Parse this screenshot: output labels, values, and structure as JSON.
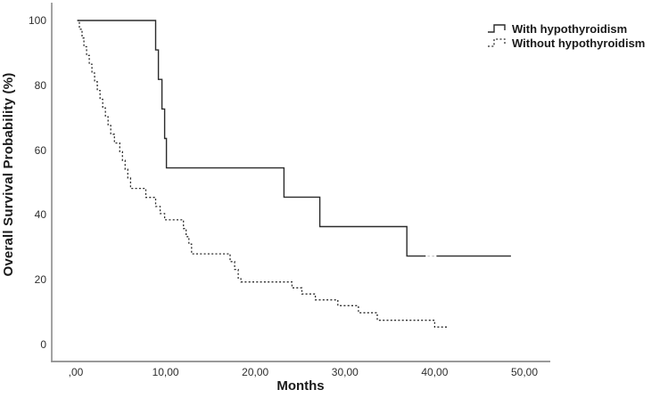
{
  "colors": {
    "curve": "#2b2b2b",
    "axis": "#8c8c8c",
    "text": "#1a1a1a",
    "tick_text": "#2e2e2e",
    "faint": "#c4c4c4",
    "background": "#ffffff"
  },
  "legend": {
    "items": [
      {
        "label": "With hypothyroidism",
        "style": "solid"
      },
      {
        "label": "Without hypothyroidism",
        "style": "dashed"
      }
    ]
  },
  "chart_data": {
    "type": "line",
    "subtype": "kaplan-meier-step",
    "title": "",
    "xlabel": "Months",
    "ylabel": "Overall Survival Probability (%)",
    "x_tick_labels": [
      ",00",
      "10,00",
      "20,00",
      "30,00",
      "40,00",
      "50,00"
    ],
    "x_tick_values": [
      0,
      10,
      20,
      30,
      40,
      50
    ],
    "y_tick_labels": [
      "0",
      "20",
      "40",
      "60",
      "80",
      "100"
    ],
    "y_tick_values": [
      0,
      20,
      40,
      60,
      80,
      100
    ],
    "xlim": [
      -2.7,
      52.9
    ],
    "ylim": [
      -5.2,
      105.2
    ],
    "grid": false,
    "legend_position": "top-right",
    "series": [
      {
        "name": "With hypothyroidism",
        "style": "solid",
        "steps": [
          [
            0.2,
            100
          ],
          [
            8.9,
            90.9
          ],
          [
            9.2,
            81.8
          ],
          [
            9.6,
            72.7
          ],
          [
            9.9,
            63.6
          ],
          [
            10.1,
            54.5
          ],
          [
            23.2,
            45.5
          ],
          [
            27.2,
            36.4
          ],
          [
            36.9,
            27.3
          ]
        ],
        "end_t": 39.0
      },
      {
        "name": "With hypothyroidism (censored gap)",
        "style": "faint",
        "steps": [
          [
            39.2,
            27.3
          ]
        ],
        "end_t": 40.0
      },
      {
        "name": "With hypothyroidism (continued)",
        "style": "solid",
        "steps": [
          [
            40.2,
            27.3
          ]
        ],
        "end_t": 48.5
      },
      {
        "name": "Without hypothyroidism",
        "style": "dashed",
        "steps": [
          [
            0.15,
            100
          ],
          [
            0.4,
            97.3
          ],
          [
            0.7,
            94.6
          ],
          [
            0.9,
            91.9
          ],
          [
            1.2,
            89.2
          ],
          [
            1.5,
            86.5
          ],
          [
            1.8,
            83.8
          ],
          [
            2.1,
            81.1
          ],
          [
            2.4,
            78.4
          ],
          [
            2.7,
            75.7
          ],
          [
            3.0,
            73.0
          ],
          [
            3.3,
            70.3
          ],
          [
            3.6,
            67.6
          ],
          [
            3.9,
            64.9
          ],
          [
            4.3,
            62.2
          ],
          [
            4.9,
            59.5
          ],
          [
            5.2,
            56.8
          ],
          [
            5.5,
            54.1
          ],
          [
            5.8,
            51.4
          ],
          [
            6.1,
            48.2
          ],
          [
            7.8,
            45.4
          ],
          [
            8.9,
            42.6
          ],
          [
            9.4,
            40.4
          ],
          [
            9.9,
            38.5
          ],
          [
            12.0,
            35.8
          ],
          [
            12.3,
            33.3
          ],
          [
            12.6,
            31.0
          ],
          [
            12.9,
            28.0
          ],
          [
            17.2,
            25.6
          ],
          [
            17.7,
            23.2
          ],
          [
            18.1,
            20.5
          ],
          [
            18.4,
            19.3
          ],
          [
            24.1,
            17.5
          ],
          [
            25.2,
            15.6
          ],
          [
            26.7,
            13.8
          ],
          [
            29.2,
            12.0
          ],
          [
            31.5,
            9.8
          ],
          [
            33.6,
            7.5
          ],
          [
            40.0,
            5.4
          ]
        ],
        "end_t": 41.5
      }
    ]
  }
}
